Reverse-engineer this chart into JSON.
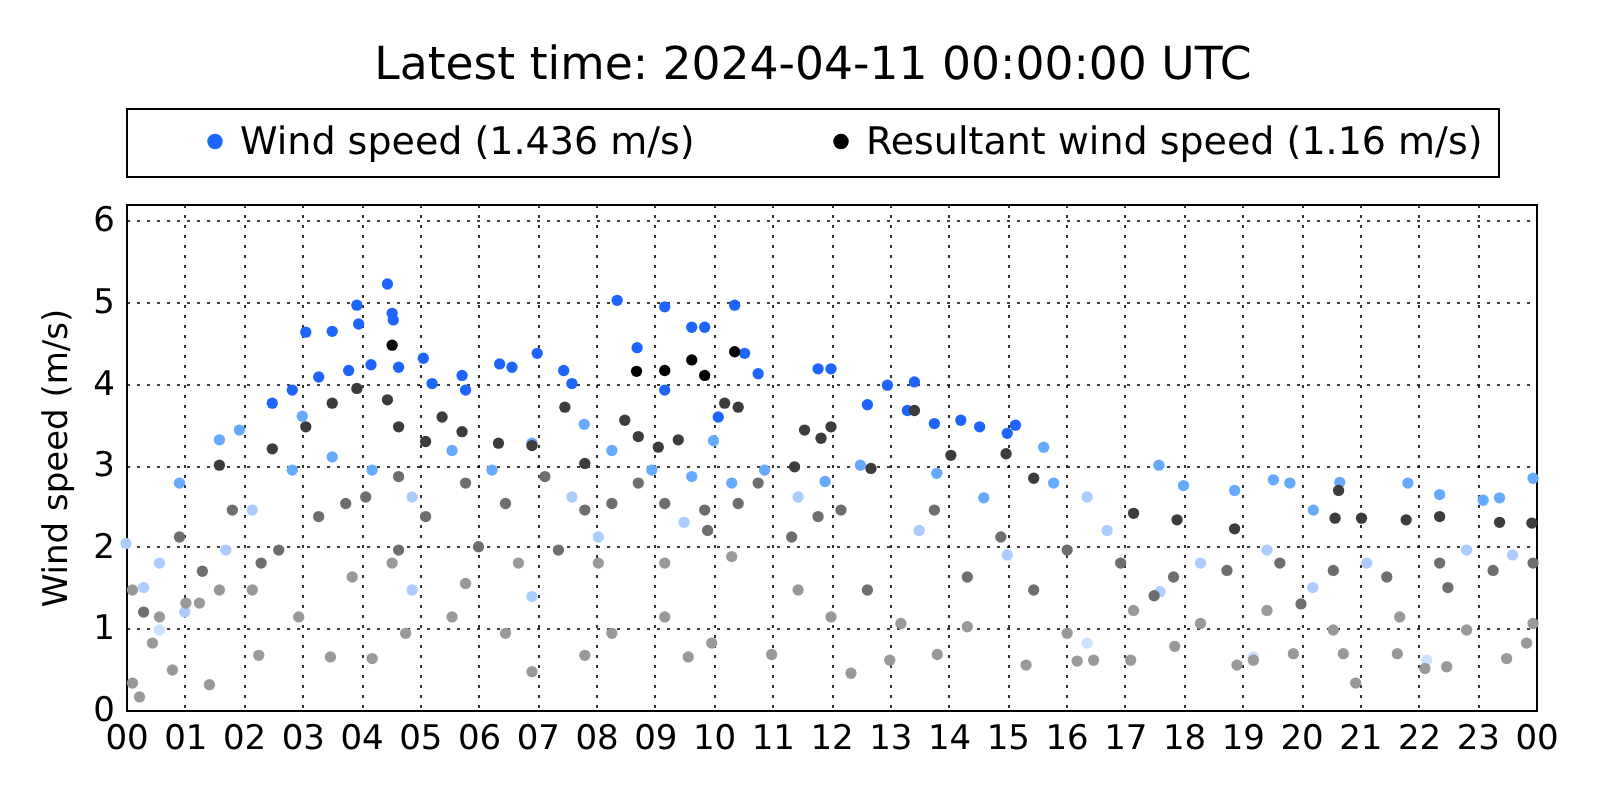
{
  "chart_data": {
    "type": "scatter",
    "title": "Latest time: 2024-04-11 00:00:00 UTC",
    "ylabel": "Wind speed (m/s)",
    "xlim": [
      0,
      24
    ],
    "ylim": [
      0,
      6.2
    ],
    "xticks": [
      {
        "value": 0,
        "label": "00"
      },
      {
        "value": 1,
        "label": "01"
      },
      {
        "value": 2,
        "label": "02"
      },
      {
        "value": 3,
        "label": "03"
      },
      {
        "value": 4,
        "label": "04"
      },
      {
        "value": 5,
        "label": "05"
      },
      {
        "value": 6,
        "label": "06"
      },
      {
        "value": 7,
        "label": "07"
      },
      {
        "value": 8,
        "label": "08"
      },
      {
        "value": 9,
        "label": "09"
      },
      {
        "value": 10,
        "label": "10"
      },
      {
        "value": 11,
        "label": "11"
      },
      {
        "value": 12,
        "label": "12"
      },
      {
        "value": 13,
        "label": "13"
      },
      {
        "value": 14,
        "label": "14"
      },
      {
        "value": 15,
        "label": "15"
      },
      {
        "value": 16,
        "label": "16"
      },
      {
        "value": 17,
        "label": "17"
      },
      {
        "value": 18,
        "label": "18"
      },
      {
        "value": 19,
        "label": "19"
      },
      {
        "value": 20,
        "label": "20"
      },
      {
        "value": 21,
        "label": "21"
      },
      {
        "value": 22,
        "label": "22"
      },
      {
        "value": 23,
        "label": "23"
      },
      {
        "value": 24,
        "label": "00"
      }
    ],
    "yticks": [
      0,
      1,
      2,
      3,
      4,
      5,
      6
    ],
    "grid": true,
    "legend": "top",
    "marker": "circle",
    "series": [
      {
        "color": "#cce0ff",
        "x": [
          0.57,
          16.36,
          19.19,
          22.14
        ],
        "values": [
          0.98,
          0.82,
          0.65,
          0.61
        ]
      },
      {
        "color": "#aaccff",
        "x": [
          0.0,
          0.57,
          1.7,
          2.15,
          4.87,
          7.59,
          8.04,
          11.44,
          4.87,
          6.91,
          16.7,
          18.29,
          19.42,
          21.12,
          22.82,
          16.36,
          0.3,
          1.0,
          13.5,
          15.0,
          20.2,
          23.6,
          17.6,
          9.5
        ],
        "values": [
          2.04,
          1.8,
          1.96,
          2.45,
          2.61,
          2.61,
          2.12,
          2.61,
          1.47,
          1.39,
          2.2,
          1.8,
          1.96,
          1.8,
          1.96,
          2.61,
          1.5,
          1.2,
          2.2,
          1.9,
          1.5,
          1.9,
          1.45,
          2.3
        ]
      },
      {
        "color": "#66aaff",
        "x": [
          0.91,
          1.59,
          1.93,
          2.83,
          3.51,
          4.19,
          5.55,
          6.23,
          6.91,
          8.27,
          8.95,
          9.63,
          10.31,
          10.87,
          17.58,
          18.0,
          18.87,
          19.53,
          19.81,
          20.21,
          20.66,
          21.82,
          22.36,
          23.1,
          23.38,
          23.95,
          15.79,
          15.62,
          12.5,
          13.8,
          14.6,
          11.9,
          3.0,
          7.8,
          10.0
        ],
        "values": [
          2.78,
          3.31,
          3.43,
          2.94,
          3.1,
          2.94,
          3.18,
          2.94,
          3.27,
          3.18,
          2.94,
          2.86,
          2.78,
          2.94,
          3.0,
          2.75,
          2.69,
          2.82,
          2.78,
          2.45,
          2.79,
          2.78,
          2.64,
          2.57,
          2.6,
          2.84,
          2.78,
          3.22,
          3.0,
          2.9,
          2.6,
          2.8,
          3.6,
          3.5,
          3.3
        ]
      },
      {
        "name": "Wind speed (1.436 m/s)",
        "color": "#1e64ff",
        "x": [
          2.49,
          2.83,
          3.28,
          3.06,
          3.51,
          3.79,
          3.93,
          3.96,
          4.17,
          4.45,
          4.53,
          4.55,
          4.64,
          5.06,
          5.21,
          5.72,
          5.78,
          6.36,
          6.57,
          7.0,
          7.45,
          7.59,
          8.36,
          8.7,
          9.17,
          9.17,
          9.63,
          9.85,
          10.08,
          10.36,
          10.53,
          10.76,
          11.78,
          12.0,
          12.62,
          12.96,
          13.3,
          13.42,
          13.76,
          14.21,
          14.53,
          15.0,
          15.14
        ],
        "values": [
          3.76,
          3.92,
          4.08,
          4.63,
          4.64,
          4.16,
          4.96,
          4.73,
          4.23,
          5.22,
          4.86,
          4.78,
          4.2,
          4.31,
          4.0,
          4.1,
          3.92,
          4.24,
          4.2,
          4.37,
          4.16,
          4.0,
          5.02,
          4.44,
          4.94,
          3.92,
          4.69,
          4.69,
          3.59,
          4.96,
          4.37,
          4.12,
          4.18,
          4.18,
          3.74,
          3.98,
          3.67,
          4.02,
          3.51,
          3.55,
          3.47,
          3.39,
          3.49
        ]
      },
      {
        "color": "#999999",
        "x": [
          0.11,
          0.23,
          0.45,
          0.79,
          1.42,
          2.26,
          3.48,
          4.19,
          4.76,
          5.55,
          6.46,
          6.91,
          7.81,
          8.27,
          9.17,
          9.57,
          9.97,
          10.99,
          12.0,
          1.25,
          2.15,
          2.94,
          3.85,
          4.53,
          5.78,
          6.68,
          8.04,
          9.17,
          10.31,
          11.44,
          0.11,
          0.57,
          1.02,
          1.59,
          12.34,
          13.0,
          13.81,
          15.32,
          16.19,
          16.47,
          17.1,
          17.85,
          18.91,
          19.19,
          19.87,
          20.72,
          20.93,
          21.64,
          22.11,
          22.48,
          23.5,
          23.84,
          13.19,
          14.32,
          16.02,
          18.29,
          20.55,
          22.82,
          23.95,
          17.15,
          19.42,
          21.68
        ],
        "values": [
          0.33,
          0.16,
          0.82,
          0.49,
          0.31,
          0.67,
          0.65,
          0.63,
          0.94,
          1.14,
          0.94,
          0.47,
          0.67,
          0.94,
          1.14,
          0.65,
          0.82,
          0.68,
          1.14,
          1.31,
          1.47,
          1.14,
          1.63,
          1.8,
          1.55,
          1.8,
          1.8,
          1.8,
          1.88,
          1.47,
          1.47,
          1.14,
          1.31,
          1.47,
          0.45,
          0.61,
          0.68,
          0.55,
          0.6,
          0.61,
          0.61,
          0.78,
          0.55,
          0.61,
          0.69,
          0.69,
          0.33,
          0.69,
          0.51,
          0.53,
          0.63,
          0.82,
          1.06,
          1.02,
          0.94,
          1.06,
          0.98,
          0.98,
          1.06,
          1.22,
          1.22,
          1.14
        ]
      },
      {
        "color": "#6e6e6e",
        "x": [
          0.91,
          1.81,
          2.6,
          3.28,
          3.74,
          4.08,
          4.64,
          5.1,
          5.78,
          6.46,
          7.13,
          7.81,
          8.27,
          8.72,
          9.17,
          9.85,
          10.42,
          10.76,
          11.33,
          11.78,
          4.64,
          7.36,
          12.17,
          13.76,
          14.89,
          16.02,
          16.93,
          17.83,
          18.74,
          19.64,
          20.55,
          21.46,
          22.36,
          23.27,
          23.95,
          12.62,
          14.32,
          15.45,
          0.3,
          1.3,
          2.3,
          6.0,
          9.9,
          17.5,
          20.0,
          22.5
        ],
        "values": [
          2.12,
          2.45,
          1.96,
          2.37,
          2.53,
          2.61,
          2.86,
          2.37,
          2.78,
          2.53,
          2.86,
          2.45,
          2.53,
          2.78,
          2.53,
          2.45,
          2.53,
          2.78,
          2.12,
          2.37,
          1.96,
          1.96,
          2.45,
          2.45,
          2.12,
          1.96,
          1.8,
          1.63,
          1.71,
          1.8,
          1.71,
          1.63,
          1.8,
          1.71,
          1.8,
          1.47,
          1.63,
          1.47,
          1.2,
          1.7,
          1.8,
          2.0,
          2.2,
          1.4,
          1.3,
          1.5
        ]
      },
      {
        "color": "#3c3c3c",
        "x": [
          1.59,
          2.49,
          3.06,
          3.51,
          3.93,
          4.45,
          4.64,
          5.1,
          5.38,
          5.72,
          6.34,
          6.91,
          7.47,
          7.81,
          8.49,
          8.72,
          9.06,
          9.4,
          10.19,
          10.42,
          11.38,
          11.55,
          12.0,
          11.83,
          12.68,
          13.42,
          14.04,
          14.98,
          15.45,
          17.15,
          17.89,
          18.87,
          20.64,
          20.58,
          21.03,
          21.79,
          22.36,
          23.38,
          23.93
        ],
        "values": [
          3.0,
          3.2,
          3.47,
          3.76,
          3.94,
          3.8,
          3.47,
          3.29,
          3.59,
          3.41,
          3.27,
          3.24,
          3.71,
          3.02,
          3.55,
          3.35,
          3.22,
          3.31,
          3.76,
          3.71,
          2.98,
          3.43,
          3.47,
          3.33,
          2.96,
          3.67,
          3.12,
          3.14,
          2.84,
          2.41,
          2.33,
          2.22,
          2.69,
          2.35,
          2.35,
          2.33,
          2.37,
          2.3,
          2.29
        ]
      },
      {
        "name": "Resultant wind speed (1.16 m/s)",
        "color": "#000000",
        "x": [
          4.53,
          8.69,
          9.17,
          9.63,
          9.85,
          10.36
        ],
        "values": [
          4.47,
          4.15,
          4.16,
          4.29,
          4.1,
          4.39
        ]
      }
    ]
  }
}
